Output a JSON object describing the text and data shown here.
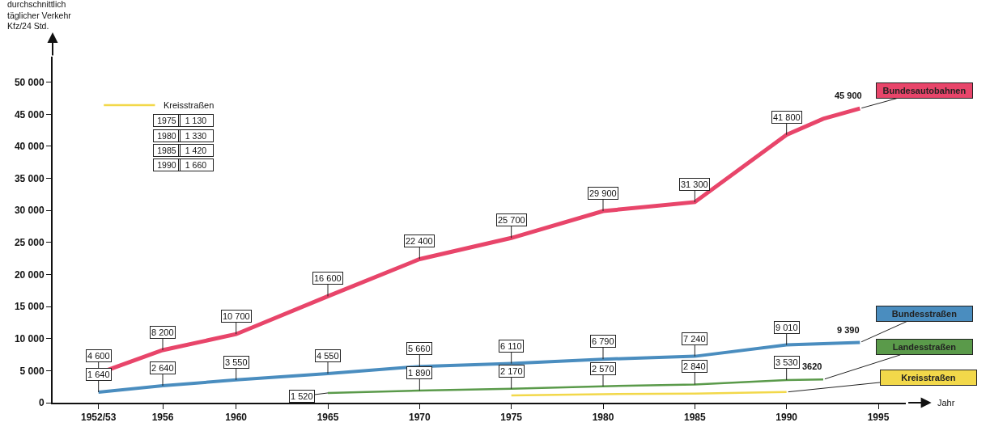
{
  "chart_data": {
    "type": "line",
    "ylabel": "durchschnittlich\ntäglicher Verkehr\nKfz/24 Std.",
    "xlabel": "Jahr",
    "xlim": [
      1950,
      1996.5
    ],
    "xticks": [
      {
        "value": 1952.5,
        "label": "1952/53"
      },
      1956,
      1960,
      1965,
      1970,
      1975,
      1980,
      1985,
      1990,
      1995
    ],
    "ylim": [
      0,
      54000
    ],
    "yticks": [
      0,
      {
        "value": 5000,
        "label": "5 000"
      },
      {
        "value": 10000,
        "label": "10 000"
      },
      {
        "value": 15000,
        "label": "15 000"
      },
      {
        "value": 20000,
        "label": "20 000"
      },
      {
        "value": 25000,
        "label": "25 000"
      },
      {
        "value": 30000,
        "label": "30 000"
      },
      {
        "value": 35000,
        "label": "35 000"
      },
      {
        "value": 40000,
        "label": "40 000"
      },
      {
        "value": 45000,
        "label": "45 000"
      },
      {
        "value": 50000,
        "label": "50 000"
      }
    ],
    "annotations": [
      "1975",
      "1 130",
      "1980",
      "1 330",
      "1985",
      "1 420",
      "1990",
      "1 660"
    ],
    "grid": false,
    "legend": false,
    "marker": "none",
    "line_style": "solid",
    "series": [
      {
        "name": "Bundesautobahnen",
        "color": "#e8456a",
        "x": [
          1952.5,
          1956,
          1960,
          1965,
          1970,
          1975,
          1980,
          1985,
          1990,
          1992,
          1994
        ],
        "values": [
          4600,
          8200,
          10700,
          16600,
          22400,
          25700,
          29900,
          31300,
          41800,
          44300,
          45900
        ],
        "value_labels": [
          "4 600",
          "8 200",
          "10 700",
          "16 600",
          "22 400",
          "25 700",
          "29 900",
          "31 300",
          "41 800",
          null,
          "45 900"
        ]
      },
      {
        "name": "Bundesstraßen",
        "color": "#4a8dbf",
        "x": [
          1952.5,
          1956,
          1960,
          1965,
          1970,
          1975,
          1980,
          1985,
          1990,
          1992,
          1994
        ],
        "values": [
          1640,
          2640,
          3550,
          4550,
          5660,
          6110,
          6790,
          7240,
          9010,
          9200,
          9390
        ],
        "value_labels": [
          "1 640",
          "2 640",
          "3 550",
          "4 550",
          "5 660",
          "6 110",
          "6 790",
          "7 240",
          "9 010",
          null,
          "9 390"
        ]
      },
      {
        "name": "Landesstraßen",
        "color": "#5a9a4a",
        "x": [
          1965,
          1970,
          1975,
          1980,
          1985,
          1990,
          1992
        ],
        "values": [
          1520,
          1890,
          2170,
          2570,
          2840,
          3530,
          3620
        ],
        "value_labels": [
          "1 520",
          "1 890",
          "2 170",
          "2 570",
          "2 840",
          "3 530",
          "3620"
        ]
      },
      {
        "name": "Kreisstraßen",
        "color": "#f2d84a",
        "x": [
          1975,
          1980,
          1985,
          1990
        ],
        "values": [
          1130,
          1330,
          1420,
          1660
        ]
      }
    ]
  }
}
